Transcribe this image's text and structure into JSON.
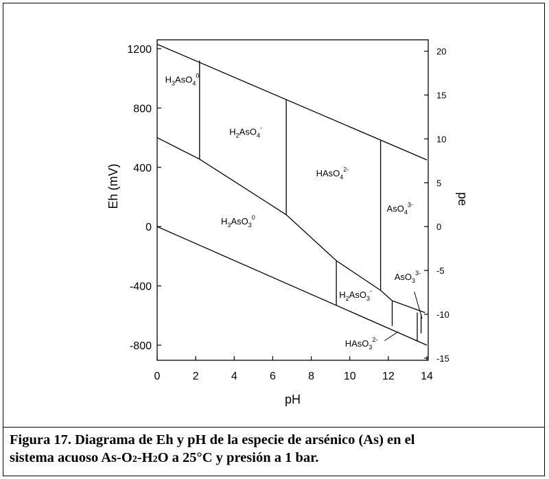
{
  "caption": {
    "line1": "Figura 17. Diagrama de Eh y pH de la especie de arsénico (As) en el",
    "line2_pre": "sistema acuoso As-O",
    "line2_sub1": "2",
    "line2_mid": "-H",
    "line2_sub2": "2",
    "line2_post": "O a 25°C y presión a 1 bar."
  },
  "chart_data": {
    "type": "line",
    "title": "",
    "xlabel": "pH",
    "ylabel": "Eh (mV)",
    "ylabel_right": "pe",
    "xlim": [
      0,
      14
    ],
    "ylim": [
      -900,
      1250
    ],
    "x_ticks": [
      0,
      2,
      4,
      6,
      8,
      10,
      12,
      14
    ],
    "y_ticks": [
      -800,
      -400,
      0,
      400,
      800,
      1200
    ],
    "pe_ticks": [
      -15,
      -10,
      -5,
      0,
      5,
      10,
      15,
      20
    ],
    "pe_per_mV": 0.0169,
    "lines": [
      {
        "name": "water-upper",
        "points": [
          [
            0,
            1230
          ],
          [
            14,
            450
          ]
        ]
      },
      {
        "name": "water-lower",
        "points": [
          [
            0,
            0
          ],
          [
            14,
            -800
          ]
        ]
      },
      {
        "name": "arsenate-arsenite",
        "points": [
          [
            0,
            600
          ],
          [
            2.2,
            455
          ],
          [
            6.7,
            80
          ],
          [
            9.3,
            -230
          ],
          [
            11.6,
            -430
          ],
          [
            12.2,
            -500
          ],
          [
            13.9,
            -580
          ]
        ]
      },
      {
        "name": "boundary-pH2.2",
        "points": [
          [
            2.2,
            455
          ],
          [
            2.2,
            1120
          ]
        ]
      },
      {
        "name": "boundary-pH6.7",
        "points": [
          [
            6.7,
            80
          ],
          [
            6.7,
            860
          ]
        ]
      },
      {
        "name": "boundary-pH11.6",
        "points": [
          [
            11.6,
            -430
          ],
          [
            11.6,
            580
          ]
        ]
      },
      {
        "name": "boundary-pH9.3",
        "points": [
          [
            9.3,
            -230
          ],
          [
            9.3,
            -530
          ]
        ]
      },
      {
        "name": "boundary-pH12.2",
        "points": [
          [
            12.2,
            -500
          ],
          [
            12.2,
            -670
          ]
        ]
      },
      {
        "name": "boundary-pH13.5",
        "points": [
          [
            13.5,
            -580
          ],
          [
            13.5,
            -775
          ]
        ]
      },
      {
        "name": "boundary-pH13.7",
        "points": [
          [
            13.7,
            -590
          ],
          [
            13.7,
            -720
          ]
        ]
      }
    ],
    "regions": [
      {
        "base": "H",
        "sub": "3",
        "mid": "AsO",
        "sub2": "4",
        "sup": "0",
        "x": 1.3,
        "y": 970
      },
      {
        "base": "H",
        "sub": "2",
        "mid": "AsO",
        "sub2": "4",
        "sup": "-",
        "x": 4.6,
        "y": 620
      },
      {
        "base": "H",
        "sub": "",
        "mid": "AsO",
        "sub2": "4",
        "sup": "2-",
        "x": 9.1,
        "y": 340
      },
      {
        "base": "",
        "sub": "",
        "mid": "AsO",
        "sub2": "4",
        "sup": "3-",
        "x": 12.6,
        "y": 100
      },
      {
        "base": "H",
        "sub": "3",
        "mid": "AsO",
        "sub2": "3",
        "sup": "0",
        "x": 4.2,
        "y": 15
      },
      {
        "base": "H",
        "sub": "2",
        "mid": "AsO",
        "sub2": "3",
        "sup": "-",
        "x": 10.3,
        "y": -480
      },
      {
        "base": "",
        "sub": "",
        "mid": "AsO",
        "sub2": "3",
        "sup": "3-",
        "x": 13.0,
        "y": -360
      },
      {
        "base": "H",
        "sub": "",
        "mid": "AsO",
        "sub2": "3",
        "sup": "2-",
        "x": 10.6,
        "y": -810
      }
    ],
    "leaders": [
      {
        "from": [
          13.35,
          -440
        ],
        "to": [
          13.75,
          -620
        ]
      },
      {
        "from": [
          11.8,
          -770
        ],
        "to": [
          12.5,
          -710
        ]
      }
    ]
  }
}
